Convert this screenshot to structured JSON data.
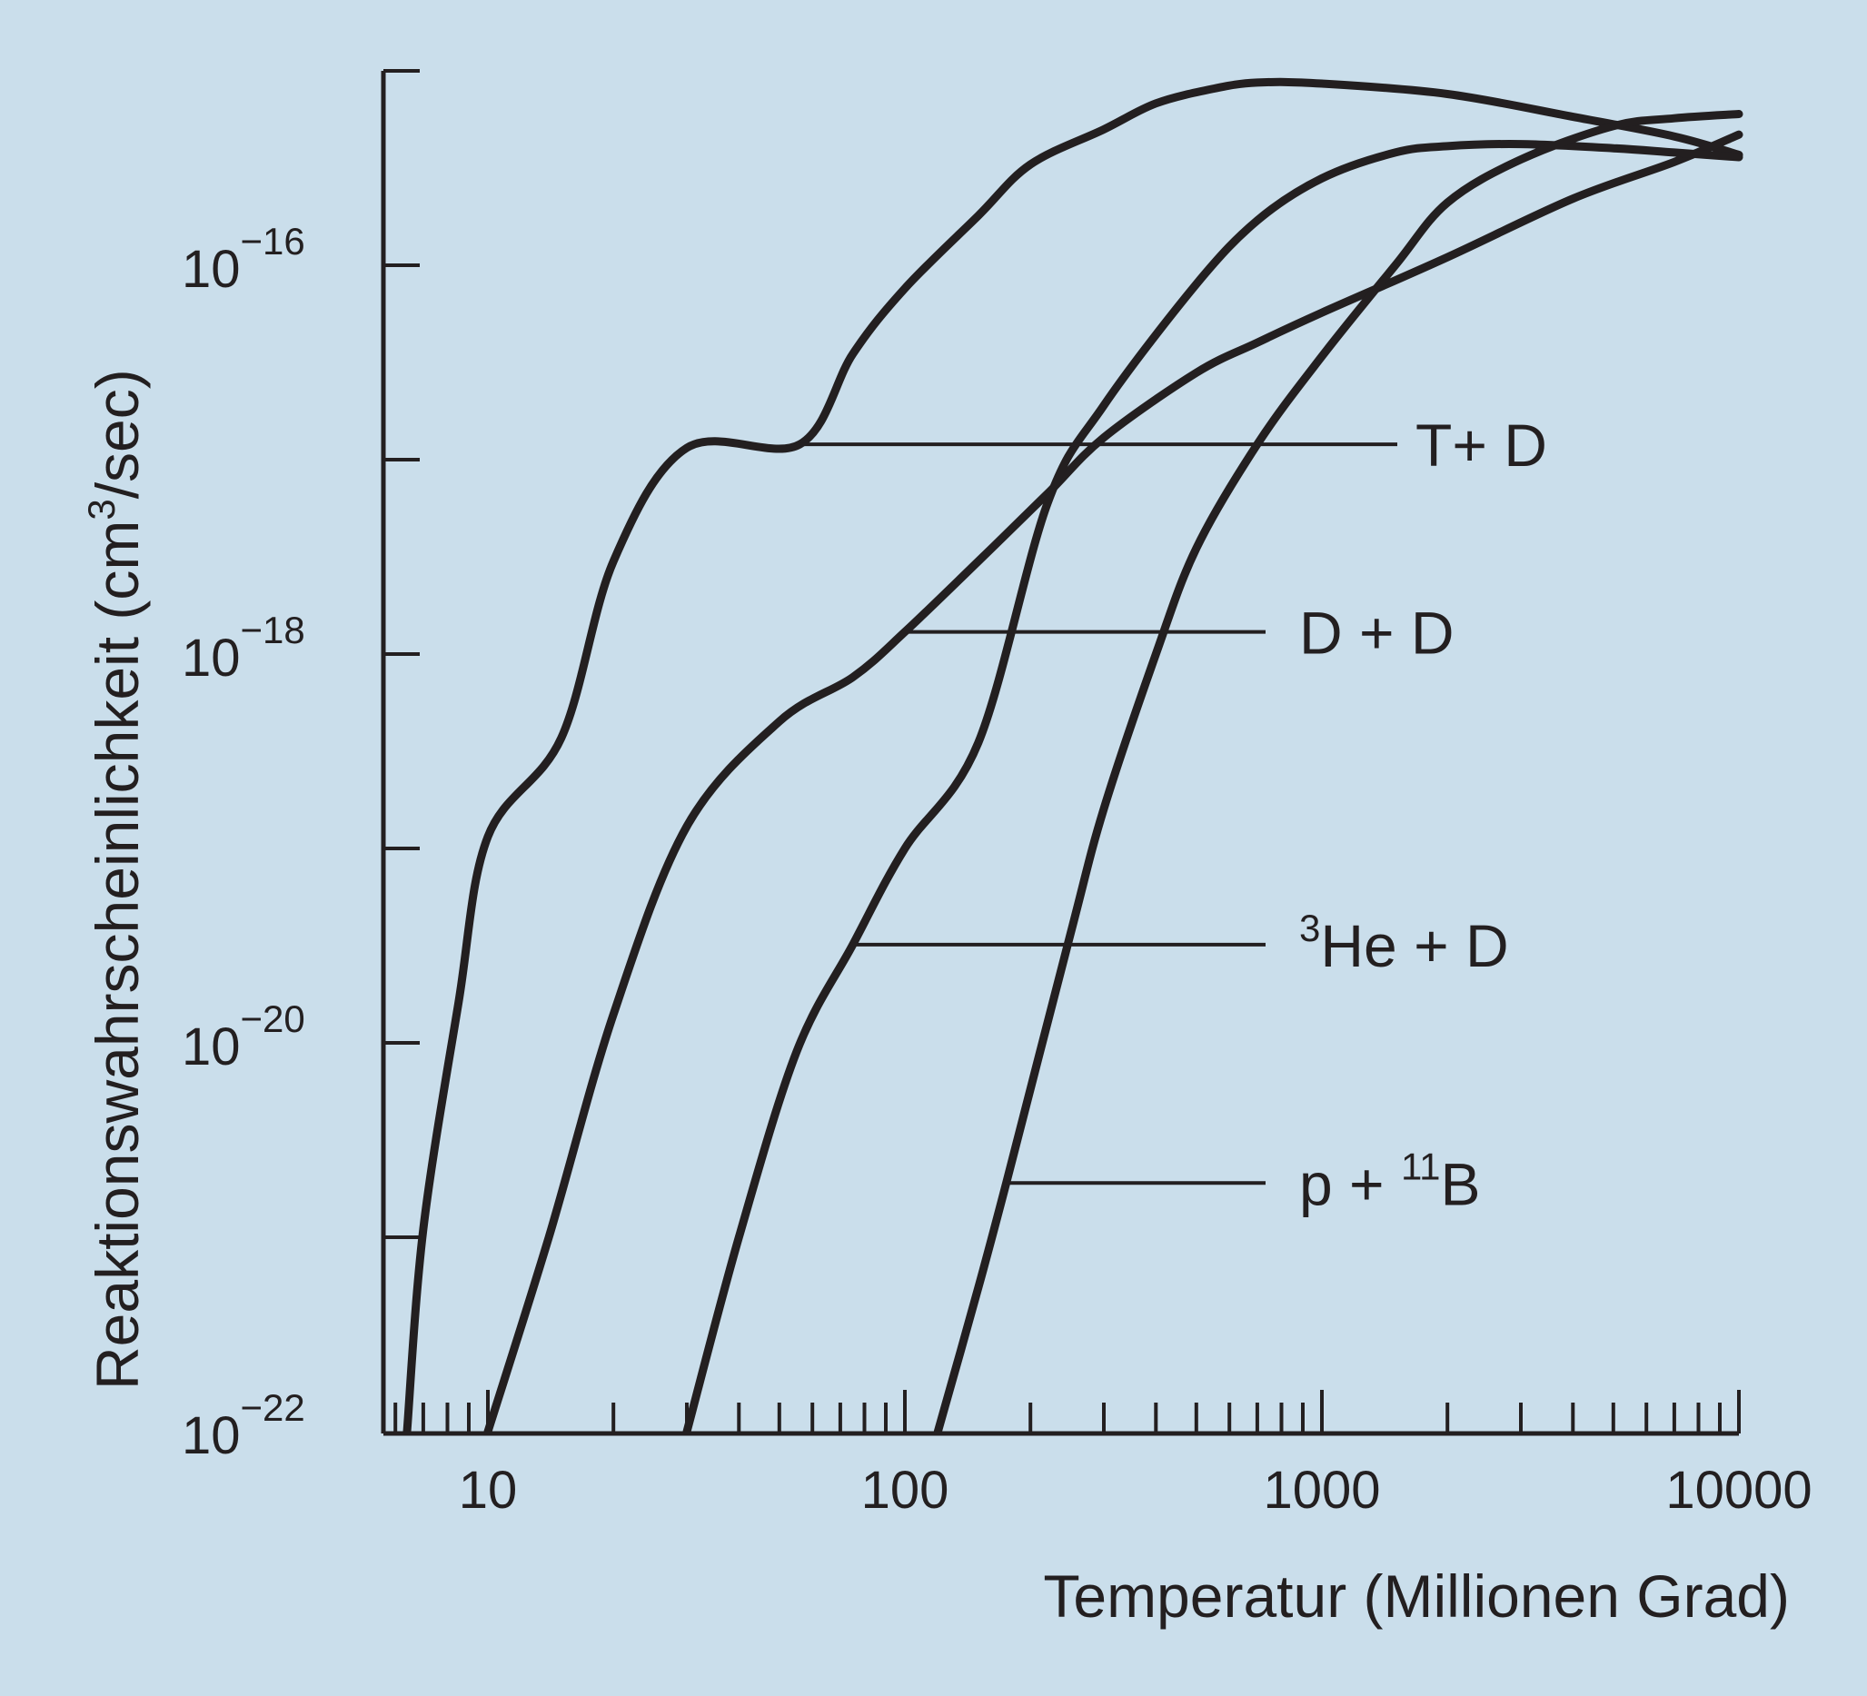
{
  "chart_data": {
    "type": "line",
    "title": "",
    "xlabel": "Temperatur (Millionen Grad)",
    "ylabel_main": "Reaktionswahrscheinlichkeit (cm",
    "ylabel_sup": "3",
    "ylabel_end": "/sec)",
    "x_scale": "log",
    "y_scale": "log",
    "xlim": [
      5.5,
      10000
    ],
    "ylim": [
      1e-22,
      1e-15
    ],
    "x_ticks": [
      {
        "value": 10,
        "label": "10"
      },
      {
        "value": 100,
        "label": "100"
      },
      {
        "value": 1000,
        "label": "1000"
      },
      {
        "value": 10000,
        "label": "10000"
      }
    ],
    "y_ticks": [
      {
        "exp": -16,
        "base": "10",
        "sup": "−16"
      },
      {
        "exp": -18,
        "base": "10",
        "sup": "−18"
      },
      {
        "exp": -20,
        "base": "10",
        "sup": "−20"
      },
      {
        "exp": -22,
        "base": "10",
        "sup": "−22"
      }
    ],
    "grid": false,
    "line_color": "#231f20",
    "background_color": "#cadeeb",
    "series": [
      {
        "name": "T+ D",
        "label_main": "T+ D",
        "label_sup": "",
        "label_tail": "",
        "label_at": {
          "x": 56,
          "y": 1.2e-17
        },
        "points": [
          [
            6.4,
            1e-22
          ],
          [
            7.0,
            1.1e-21
          ],
          [
            8.5,
            1.6e-20
          ],
          [
            10,
            1.15e-19
          ],
          [
            15,
            3.7e-19
          ],
          [
            20,
            3e-18
          ],
          [
            30,
            1.15e-17
          ],
          [
            56,
            1.2e-17
          ],
          [
            75,
            3.5e-17
          ],
          [
            100,
            7.6e-17
          ],
          [
            150,
            1.8e-16
          ],
          [
            200,
            3.3e-16
          ],
          [
            300,
            5e-16
          ],
          [
            400,
            6.8e-16
          ],
          [
            550,
            8.1e-16
          ],
          [
            700,
            8.7e-16
          ],
          [
            1000,
            8.6e-16
          ],
          [
            2000,
            7.6e-16
          ],
          [
            4000,
            5.8e-16
          ],
          [
            7000,
            4.6e-16
          ],
          [
            10000,
            3.7e-16
          ]
        ]
      },
      {
        "name": "D + D",
        "label_main": "D",
        "label_sup": "",
        "label_tail": "+ D",
        "label_at": {
          "x": 100,
          "y": 1.3e-18
        },
        "points": [
          [
            10,
            1e-22
          ],
          [
            14,
            1e-21
          ],
          [
            20,
            1.4e-20
          ],
          [
            30,
            1.3e-19
          ],
          [
            50,
            4.5e-19
          ],
          [
            75,
            7.6e-19
          ],
          [
            100,
            1.3e-18
          ],
          [
            150,
            3e-18
          ],
          [
            220,
            6.7e-18
          ],
          [
            300,
            1.3e-17
          ],
          [
            500,
            2.8e-17
          ],
          [
            700,
            4e-17
          ],
          [
            1000,
            5.7e-17
          ],
          [
            2000,
            1.1e-16
          ],
          [
            4000,
            2.2e-16
          ],
          [
            7000,
            3.4e-16
          ],
          [
            10000,
            4.7e-16
          ]
        ]
      },
      {
        "name": "3He + D",
        "label_main": "He",
        "label_sup": "3",
        "label_tail": "+ D",
        "label_at": {
          "x": 75,
          "y": 3.2e-20
        },
        "points": [
          [
            30,
            1e-22
          ],
          [
            40,
            1e-21
          ],
          [
            55,
            9e-21
          ],
          [
            75,
            3.2e-20
          ],
          [
            100,
            1e-19
          ],
          [
            150,
            3.5e-19
          ],
          [
            220,
            6e-18
          ],
          [
            300,
            1.9e-17
          ],
          [
            500,
            8e-17
          ],
          [
            700,
            1.7e-16
          ],
          [
            1000,
            2.8e-16
          ],
          [
            1500,
            3.8e-16
          ],
          [
            2000,
            4.1e-16
          ],
          [
            3000,
            4.2e-16
          ],
          [
            5000,
            4e-16
          ],
          [
            7000,
            3.8e-16
          ],
          [
            10000,
            3.6e-16
          ]
        ]
      },
      {
        "name": "p + 11B",
        "label_main": "p",
        "label_sup": "11",
        "label_tail": "B",
        "label_at": {
          "x": 175,
          "y": 1.9e-21
        },
        "points": [
          [
            120,
            1e-22
          ],
          [
            150,
            5.5e-22
          ],
          [
            175,
            1.9e-21
          ],
          [
            250,
            3.7e-20
          ],
          [
            300,
            1.6e-19
          ],
          [
            400,
            1e-18
          ],
          [
            500,
            3.5e-18
          ],
          [
            700,
            1.2e-17
          ],
          [
            1000,
            3.4e-17
          ],
          [
            1500,
            1e-16
          ],
          [
            2000,
            2.1e-16
          ],
          [
            3000,
            3.5e-16
          ],
          [
            5000,
            5.2e-16
          ],
          [
            7000,
            5.7e-16
          ],
          [
            10000,
            6e-16
          ]
        ]
      }
    ]
  }
}
